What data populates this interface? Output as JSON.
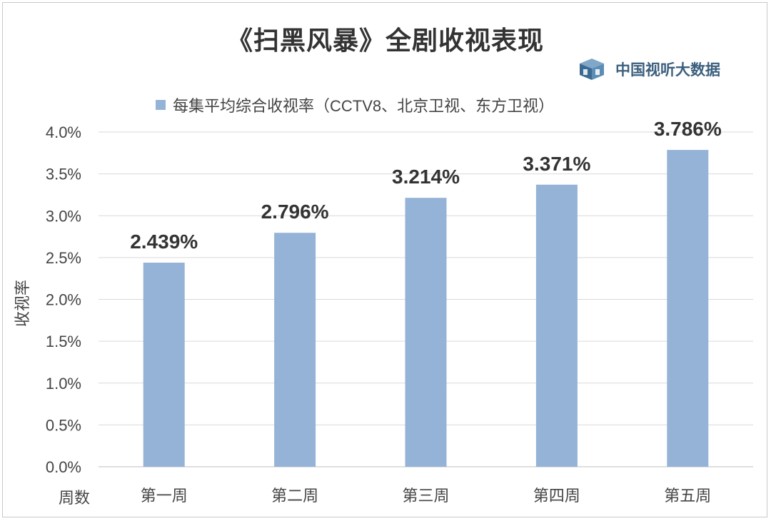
{
  "chart_data": {
    "type": "bar",
    "title": "《扫黑风暴》全剧收视表现",
    "source_logo": "中国视听大数据",
    "legend": [
      "每集平均综合收视率（CCTV8、北京卫视、东方卫视）"
    ],
    "xlabel": "周数",
    "ylabel": "收视率",
    "categories": [
      "第一周",
      "第二周",
      "第三周",
      "第四周",
      "第五周"
    ],
    "series": [
      {
        "name": "每集平均综合收视率（CCTV8、北京卫视、东方卫视）",
        "values": [
          2.439,
          2.796,
          3.214,
          3.371,
          3.786
        ],
        "labels": [
          "2.439%",
          "2.796%",
          "3.214%",
          "3.371%",
          "3.786%"
        ],
        "color": "#95b3d7"
      }
    ],
    "ylim": [
      0,
      4.0
    ],
    "yticks": [
      0,
      0.5,
      1.0,
      1.5,
      2.0,
      2.5,
      3.0,
      3.5,
      4.0
    ],
    "ytick_labels": [
      "0.0%",
      "0.5%",
      "1.0%",
      "1.5%",
      "2.0%",
      "2.5%",
      "3.0%",
      "3.5%",
      "4.0%"
    ],
    "grid": true,
    "legend_position": "top"
  }
}
